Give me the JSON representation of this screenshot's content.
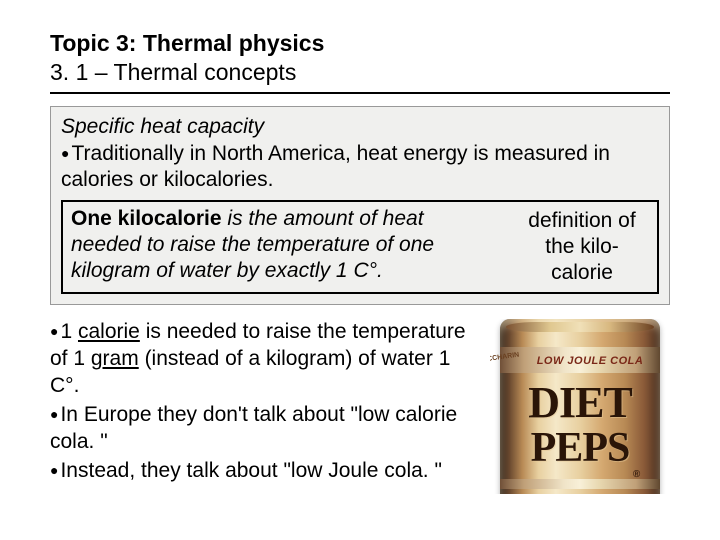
{
  "header": {
    "title": "Topic 3: Thermal physics",
    "subtitle": "3. 1 – Thermal concepts"
  },
  "box": {
    "section_title": "Specific heat capacity",
    "intro": "Traditionally in North America, heat energy is measured in calories or kilocalories.",
    "definition_lead": "One kilocalorie",
    "definition_body": " is the amount of heat needed to raise the temperature of one kilogram of water by exactly 1 C°.",
    "definition_label": "definition of the kilo-calorie"
  },
  "lower": {
    "p1_pre": "1 ",
    "p1_u1": "calorie",
    "p1_mid": " is needed to raise the temperature of 1 ",
    "p1_u2": "gram",
    "p1_post": " (instead of a kilogram) of water 1 C°.",
    "p2": "In Europe they don't talk about \"low calorie cola. \"",
    "p3": "Instead, they talk about \"low Joule cola. \""
  },
  "can": {
    "no_saccharin": "NO SACCHARIN",
    "low_joule": "LOW JOULE COLA",
    "diet": "DIET",
    "brand": "PEPS",
    "reg": "®",
    "colors": {
      "body_dark": "#3a2a1e",
      "body_light": "#f5e8c8",
      "text_dark": "#2a1508",
      "accent_red": "#7a2818"
    }
  }
}
